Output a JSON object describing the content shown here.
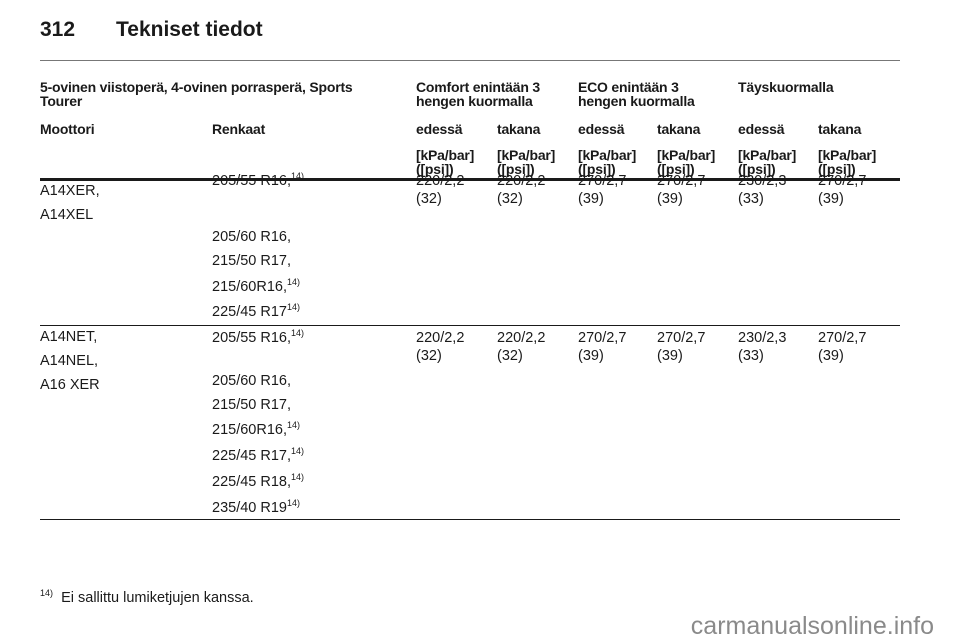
{
  "page_number": "312",
  "page_title": "Tekniset tiedot",
  "table": {
    "group_header": "5-ovinen viistoperä, 4-ovinen porrasperä, Sports Tourer",
    "group_header_lines": [
      "5-ovinen viistoperä, 4-ovinen porrasperä, Sports",
      "Tourer"
    ],
    "load_headers": [
      {
        "lines": [
          "Comfort enintään 3",
          "hengen kuormalla"
        ]
      },
      {
        "lines": [
          "ECO enintään 3",
          "hengen kuormalla"
        ]
      },
      {
        "lines": [
          "Täyskuormalla"
        ]
      }
    ],
    "col_engine": "Moottori",
    "col_tyres": "Renkaat",
    "sub_headers": [
      "edessä",
      "takana",
      "edessä",
      "takana",
      "edessä",
      "takana"
    ],
    "unit_lines": [
      "[kPa/bar]",
      "([psi])"
    ],
    "rows": [
      {
        "engines": [
          "A14XER,",
          "A14XEL"
        ],
        "tyres": [
          {
            "t": "205/55 R16,",
            "fn": "14)"
          },
          {
            "t": "205/60 R16,",
            "fn": ""
          },
          {
            "t": "215/50 R17,",
            "fn": ""
          },
          {
            "t": "215/60R16,",
            "fn": "14)"
          },
          {
            "t": "225/45 R17",
            "fn": "14)"
          }
        ],
        "values": [
          [
            "220/2,2",
            "(32)"
          ],
          [
            "220/2,2",
            "(32)"
          ],
          [
            "270/2,7",
            "(39)"
          ],
          [
            "270/2,7",
            "(39)"
          ],
          [
            "230/2,3",
            "(33)"
          ],
          [
            "270/2,7",
            "(39)"
          ]
        ]
      },
      {
        "engines": [
          "A14NET,",
          "A14NEL,",
          "A16 XER"
        ],
        "tyres": [
          {
            "t": "205/55 R16,",
            "fn": "14)"
          },
          {
            "t": "205/60 R16,",
            "fn": ""
          },
          {
            "t": "215/50 R17,",
            "fn": ""
          },
          {
            "t": "215/60R16,",
            "fn": "14)"
          },
          {
            "t": "225/45 R17,",
            "fn": "14)"
          },
          {
            "t": "225/45 R18,",
            "fn": "14)"
          },
          {
            "t": "235/40 R19",
            "fn": "14)"
          }
        ],
        "values": [
          [
            "220/2,2",
            "(32)"
          ],
          [
            "220/2,2",
            "(32)"
          ],
          [
            "270/2,7",
            "(39)"
          ],
          [
            "270/2,7",
            "(39)"
          ],
          [
            "230/2,3",
            "(33)"
          ],
          [
            "270/2,7",
            "(39)"
          ]
        ]
      }
    ]
  },
  "footnote": {
    "mark": "14)",
    "text": "Ei sallittu lumiketjujen kanssa."
  },
  "watermark": "carmanualsonline.info"
}
